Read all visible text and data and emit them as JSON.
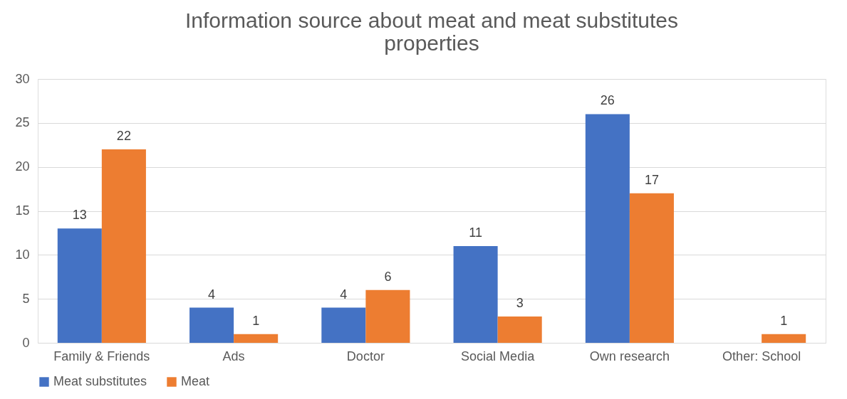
{
  "chart_data": {
    "type": "bar",
    "title": "Information source about meat and meat substitutes properties",
    "categories": [
      "Family & Friends",
      "Ads",
      "Doctor",
      "Social Media",
      "Own research",
      "Other: School"
    ],
    "series": [
      {
        "name": "Meat substitutes",
        "color": "#4472c4",
        "values": [
          13,
          4,
          4,
          11,
          26,
          null
        ]
      },
      {
        "name": "Meat",
        "color": "#ed7d31",
        "values": [
          22,
          1,
          6,
          3,
          17,
          1
        ]
      }
    ],
    "ylim": [
      0,
      30
    ],
    "yticks": [
      0,
      5,
      10,
      15,
      20,
      25,
      30
    ],
    "grid": "y",
    "legend": "bottom",
    "data_labels": true
  }
}
